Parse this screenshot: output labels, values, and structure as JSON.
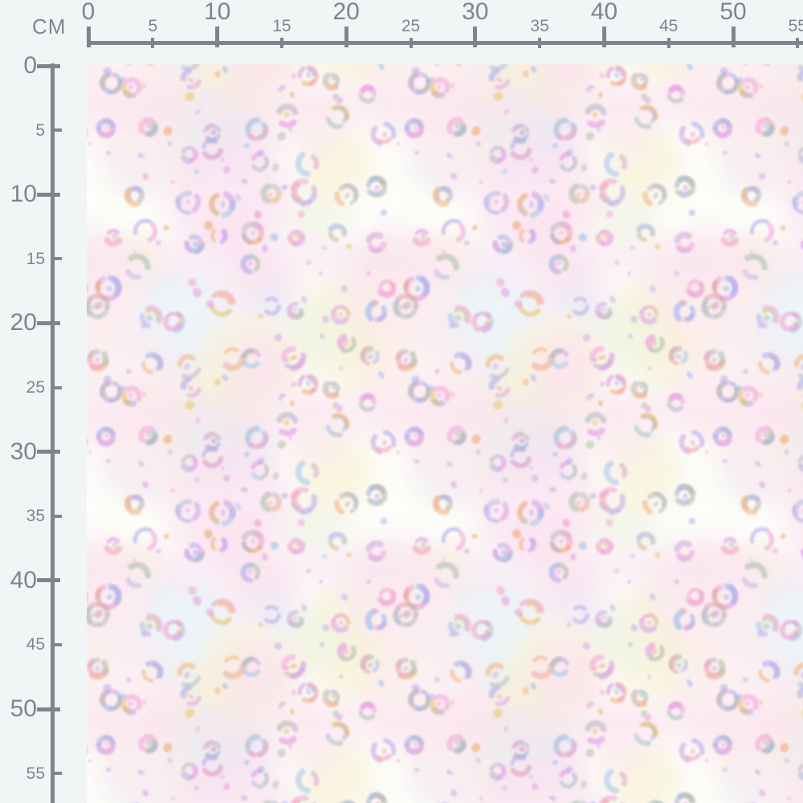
{
  "unit_label": "CM",
  "rulers": {
    "horizontal": {
      "unit": "cm",
      "ticks": [
        {
          "value": "0",
          "major": true
        },
        {
          "value": "5",
          "major": false
        },
        {
          "value": "10",
          "major": true
        },
        {
          "value": "15",
          "major": false
        },
        {
          "value": "20",
          "major": true
        },
        {
          "value": "25",
          "major": false
        },
        {
          "value": "30",
          "major": true
        },
        {
          "value": "35",
          "major": false
        },
        {
          "value": "40",
          "major": true
        },
        {
          "value": "45",
          "major": false
        },
        {
          "value": "50",
          "major": true
        },
        {
          "value": "55",
          "major": false
        }
      ]
    },
    "vertical": {
      "unit": "cm",
      "ticks": [
        {
          "value": "0",
          "major": true
        },
        {
          "value": "5",
          "major": false
        },
        {
          "value": "10",
          "major": true
        },
        {
          "value": "15",
          "major": false
        },
        {
          "value": "20",
          "major": true
        },
        {
          "value": "25",
          "major": false
        },
        {
          "value": "30",
          "major": true
        },
        {
          "value": "35",
          "major": false
        },
        {
          "value": "40",
          "major": true
        },
        {
          "value": "45",
          "major": false
        },
        {
          "value": "50",
          "major": true
        },
        {
          "value": "55",
          "major": false
        }
      ]
    }
  },
  "swatch": {
    "description": "Pastel rainbow leopard print fabric swatch",
    "palette": {
      "ruler_gray": "#7d858e",
      "page_background": "#f2f5f6",
      "swatch_base": "#fdfdf9",
      "spot_colors": [
        "#f2a2da",
        "#e292e2",
        "#aca8ec",
        "#92b2ee",
        "#a4c6ec",
        "#f4b078",
        "#ee9a58",
        "#f0a0b0",
        "#a9bba6",
        "#b6bac2",
        "#e6c05c",
        "#caa4e6"
      ],
      "tint_colors": [
        "#f9f1d2",
        "#fbdeef",
        "#e6eef6",
        "#fce9ee",
        "#eef3e2"
      ]
    }
  }
}
